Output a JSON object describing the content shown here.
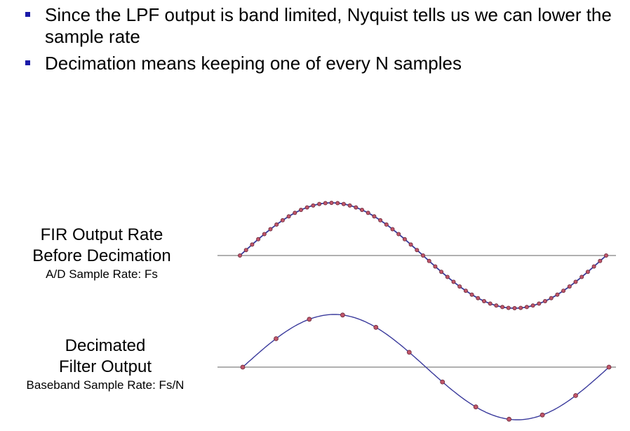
{
  "bullets": [
    {
      "text": "Since the LPF output is band limited, Nyquist tells us we can lower the sample rate"
    },
    {
      "text": "Decimation means keeping one of every N samples"
    }
  ],
  "panels": [
    {
      "title_line1": "FIR Output Rate",
      "title_line2": "Before Decimation",
      "subtitle": "A/D Sample Rate: Fs",
      "sample_count": 61
    },
    {
      "title_line1": "Decimated",
      "title_line2": "Filter Output",
      "subtitle": "Baseband Sample Rate: Fs/N",
      "sample_count": 12
    }
  ],
  "colors": {
    "bullet": "#1a1aa8",
    "curve": "#3a3a9c",
    "sample_fill": "#c0556a",
    "sample_stroke": "#6a2a3a",
    "axis": "#808080"
  }
}
